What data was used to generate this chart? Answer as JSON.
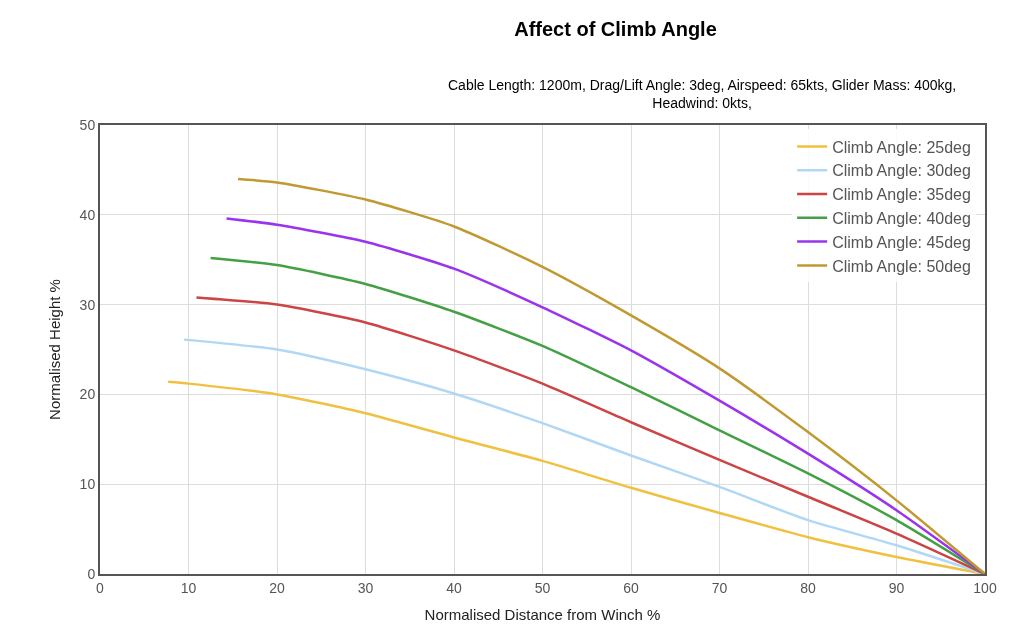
{
  "chart_data": {
    "type": "line",
    "title": "Affect of Climb Angle",
    "subtitle": "Cable Length: 1200m, Drag/Lift Angle: 3deg, Airspeed: 65kts, Glider Mass: 400kg,\nHeadwind: 0kts,",
    "xlabel": "Normalised Distance from Winch %",
    "ylabel": "Normalised Height %",
    "xlim": [
      0,
      100
    ],
    "ylim": [
      0,
      50
    ],
    "xticks": [
      0,
      10,
      20,
      30,
      40,
      50,
      60,
      70,
      80,
      90,
      100
    ],
    "yticks": [
      0,
      10,
      20,
      30,
      40,
      50
    ],
    "grid": true,
    "legend": "top right",
    "marker": "none",
    "line_style": "solid",
    "series": [
      {
        "name": "Climb Angle: 25deg",
        "color": "#f0c040",
        "x": [
          7.7,
          10,
          20,
          30,
          40,
          50,
          60,
          70,
          80,
          90,
          100
        ],
        "values": [
          21.4,
          21.2,
          20.0,
          17.9,
          15.2,
          12.6,
          9.6,
          6.8,
          4.1,
          1.9,
          0
        ]
      },
      {
        "name": "Climb Angle: 30deg",
        "color": "#b0d8f5",
        "x": [
          9.5,
          20,
          30,
          40,
          50,
          60,
          70,
          80,
          90,
          100
        ],
        "values": [
          26.1,
          25.0,
          22.8,
          20.1,
          16.8,
          13.2,
          9.7,
          6.0,
          3.2,
          0
        ]
      },
      {
        "name": "Climb Angle: 35deg",
        "color": "#cc4444",
        "x": [
          10.9,
          20,
          30,
          40,
          50,
          60,
          70,
          80,
          90,
          100
        ],
        "values": [
          30.8,
          30.0,
          28.0,
          24.9,
          21.2,
          16.9,
          12.7,
          8.6,
          4.5,
          0
        ]
      },
      {
        "name": "Climb Angle: 40deg",
        "color": "#44a044",
        "x": [
          12.5,
          20,
          30,
          40,
          50,
          60,
          70,
          80,
          90,
          100
        ],
        "values": [
          35.2,
          34.4,
          32.3,
          29.2,
          25.4,
          20.8,
          16.0,
          11.2,
          6.0,
          0
        ]
      },
      {
        "name": "Climb Angle: 45deg",
        "color": "#9933ee",
        "x": [
          14.3,
          20,
          30,
          40,
          50,
          60,
          70,
          80,
          90,
          100
        ],
        "values": [
          39.6,
          38.9,
          37.0,
          34.0,
          29.7,
          24.9,
          19.3,
          13.4,
          7.1,
          0
        ]
      },
      {
        "name": "Climb Angle: 50deg",
        "color": "#c09a30",
        "x": [
          15.6,
          20,
          30,
          40,
          50,
          60,
          70,
          80,
          90,
          100
        ],
        "values": [
          44.0,
          43.6,
          41.7,
          38.7,
          34.2,
          28.8,
          22.9,
          15.8,
          8.2,
          0
        ]
      }
    ]
  }
}
